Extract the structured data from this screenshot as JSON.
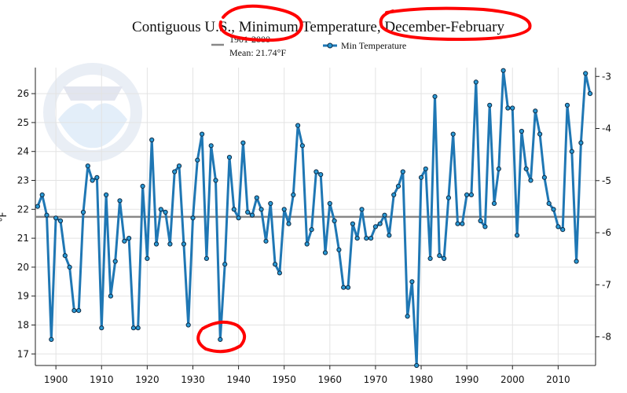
{
  "chart_data": {
    "type": "line",
    "title": "Contiguous U.S., Minimum Temperature, December-February",
    "ylabel_left": "°F",
    "left_ylim": [
      16.6,
      26.9
    ],
    "right_ylim": [
      -8.55,
      -2.83
    ],
    "xlim": [
      1895.5,
      2018.2
    ],
    "x_ticks": [
      1900,
      1910,
      1920,
      1930,
      1940,
      1950,
      1960,
      1970,
      1980,
      1990,
      2000,
      2010
    ],
    "left_ticks": [
      17,
      18,
      19,
      20,
      21,
      22,
      23,
      24,
      25,
      26
    ],
    "right_ticks": [
      -8,
      -7,
      -6,
      -5,
      -4,
      -3
    ],
    "mean": {
      "value": 21.74,
      "label_line1": "1901-2000",
      "label_line2": "Mean: 21.74°F",
      "color": "#888888"
    },
    "legend": {
      "placement": "top-center"
    },
    "series": [
      {
        "name": "Min Temperature",
        "color": "#1f77b4",
        "x": [
          1896,
          1897,
          1898,
          1899,
          1900,
          1901,
          1902,
          1903,
          1904,
          1905,
          1906,
          1907,
          1908,
          1909,
          1910,
          1911,
          1912,
          1913,
          1914,
          1915,
          1916,
          1917,
          1918,
          1919,
          1920,
          1921,
          1922,
          1923,
          1924,
          1925,
          1926,
          1927,
          1928,
          1929,
          1930,
          1931,
          1932,
          1933,
          1934,
          1935,
          1936,
          1937,
          1938,
          1939,
          1940,
          1941,
          1942,
          1943,
          1944,
          1945,
          1946,
          1947,
          1948,
          1949,
          1950,
          1951,
          1952,
          1953,
          1954,
          1955,
          1956,
          1957,
          1958,
          1959,
          1960,
          1961,
          1962,
          1963,
          1964,
          1965,
          1966,
          1967,
          1968,
          1969,
          1970,
          1971,
          1972,
          1973,
          1974,
          1975,
          1976,
          1977,
          1978,
          1979,
          1980,
          1981,
          1982,
          1983,
          1984,
          1985,
          1986,
          1987,
          1988,
          1989,
          1990,
          1991,
          1992,
          1993,
          1994,
          1995,
          1996,
          1997,
          1998,
          1999,
          2000,
          2001,
          2002,
          2003,
          2004,
          2005,
          2006,
          2007,
          2008,
          2009,
          2010,
          2011,
          2012,
          2013,
          2014,
          2015,
          2016,
          2017
        ],
        "values": [
          22.1,
          22.5,
          21.8,
          17.5,
          21.7,
          21.6,
          20.4,
          20.0,
          18.5,
          18.5,
          21.9,
          23.5,
          23.0,
          23.1,
          17.9,
          22.5,
          19.0,
          20.2,
          22.3,
          20.9,
          21.0,
          17.9,
          17.9,
          22.8,
          20.3,
          24.4,
          20.8,
          22.0,
          21.9,
          20.8,
          23.3,
          23.5,
          20.8,
          18.0,
          21.7,
          23.7,
          24.6,
          20.3,
          24.2,
          23.0,
          17.5,
          20.1,
          23.8,
          22.0,
          21.7,
          24.3,
          21.9,
          21.8,
          22.4,
          22.0,
          20.9,
          22.2,
          20.1,
          19.8,
          22.0,
          21.5,
          22.5,
          24.9,
          24.2,
          20.8,
          21.3,
          23.3,
          23.2,
          20.5,
          22.2,
          21.6,
          20.6,
          19.3,
          19.3,
          21.5,
          21.0,
          22.0,
          21.0,
          21.0,
          21.4,
          21.5,
          21.8,
          21.1,
          22.5,
          22.8,
          23.3,
          18.3,
          19.5,
          16.6,
          23.1,
          23.4,
          20.3,
          25.9,
          20.4,
          20.3,
          22.4,
          24.6,
          21.5,
          21.5,
          22.5,
          22.5,
          26.4,
          21.6,
          21.4,
          25.6,
          22.2,
          23.4,
          26.8,
          25.5,
          25.5,
          21.1,
          24.7,
          23.4,
          23.0,
          25.4,
          24.6,
          23.1,
          22.2,
          22.0,
          21.4,
          21.3,
          25.6,
          24.0,
          20.2,
          24.3,
          26.7,
          26.0
        ]
      }
    ]
  },
  "annotations": {
    "circles_color": "#ff0000"
  }
}
